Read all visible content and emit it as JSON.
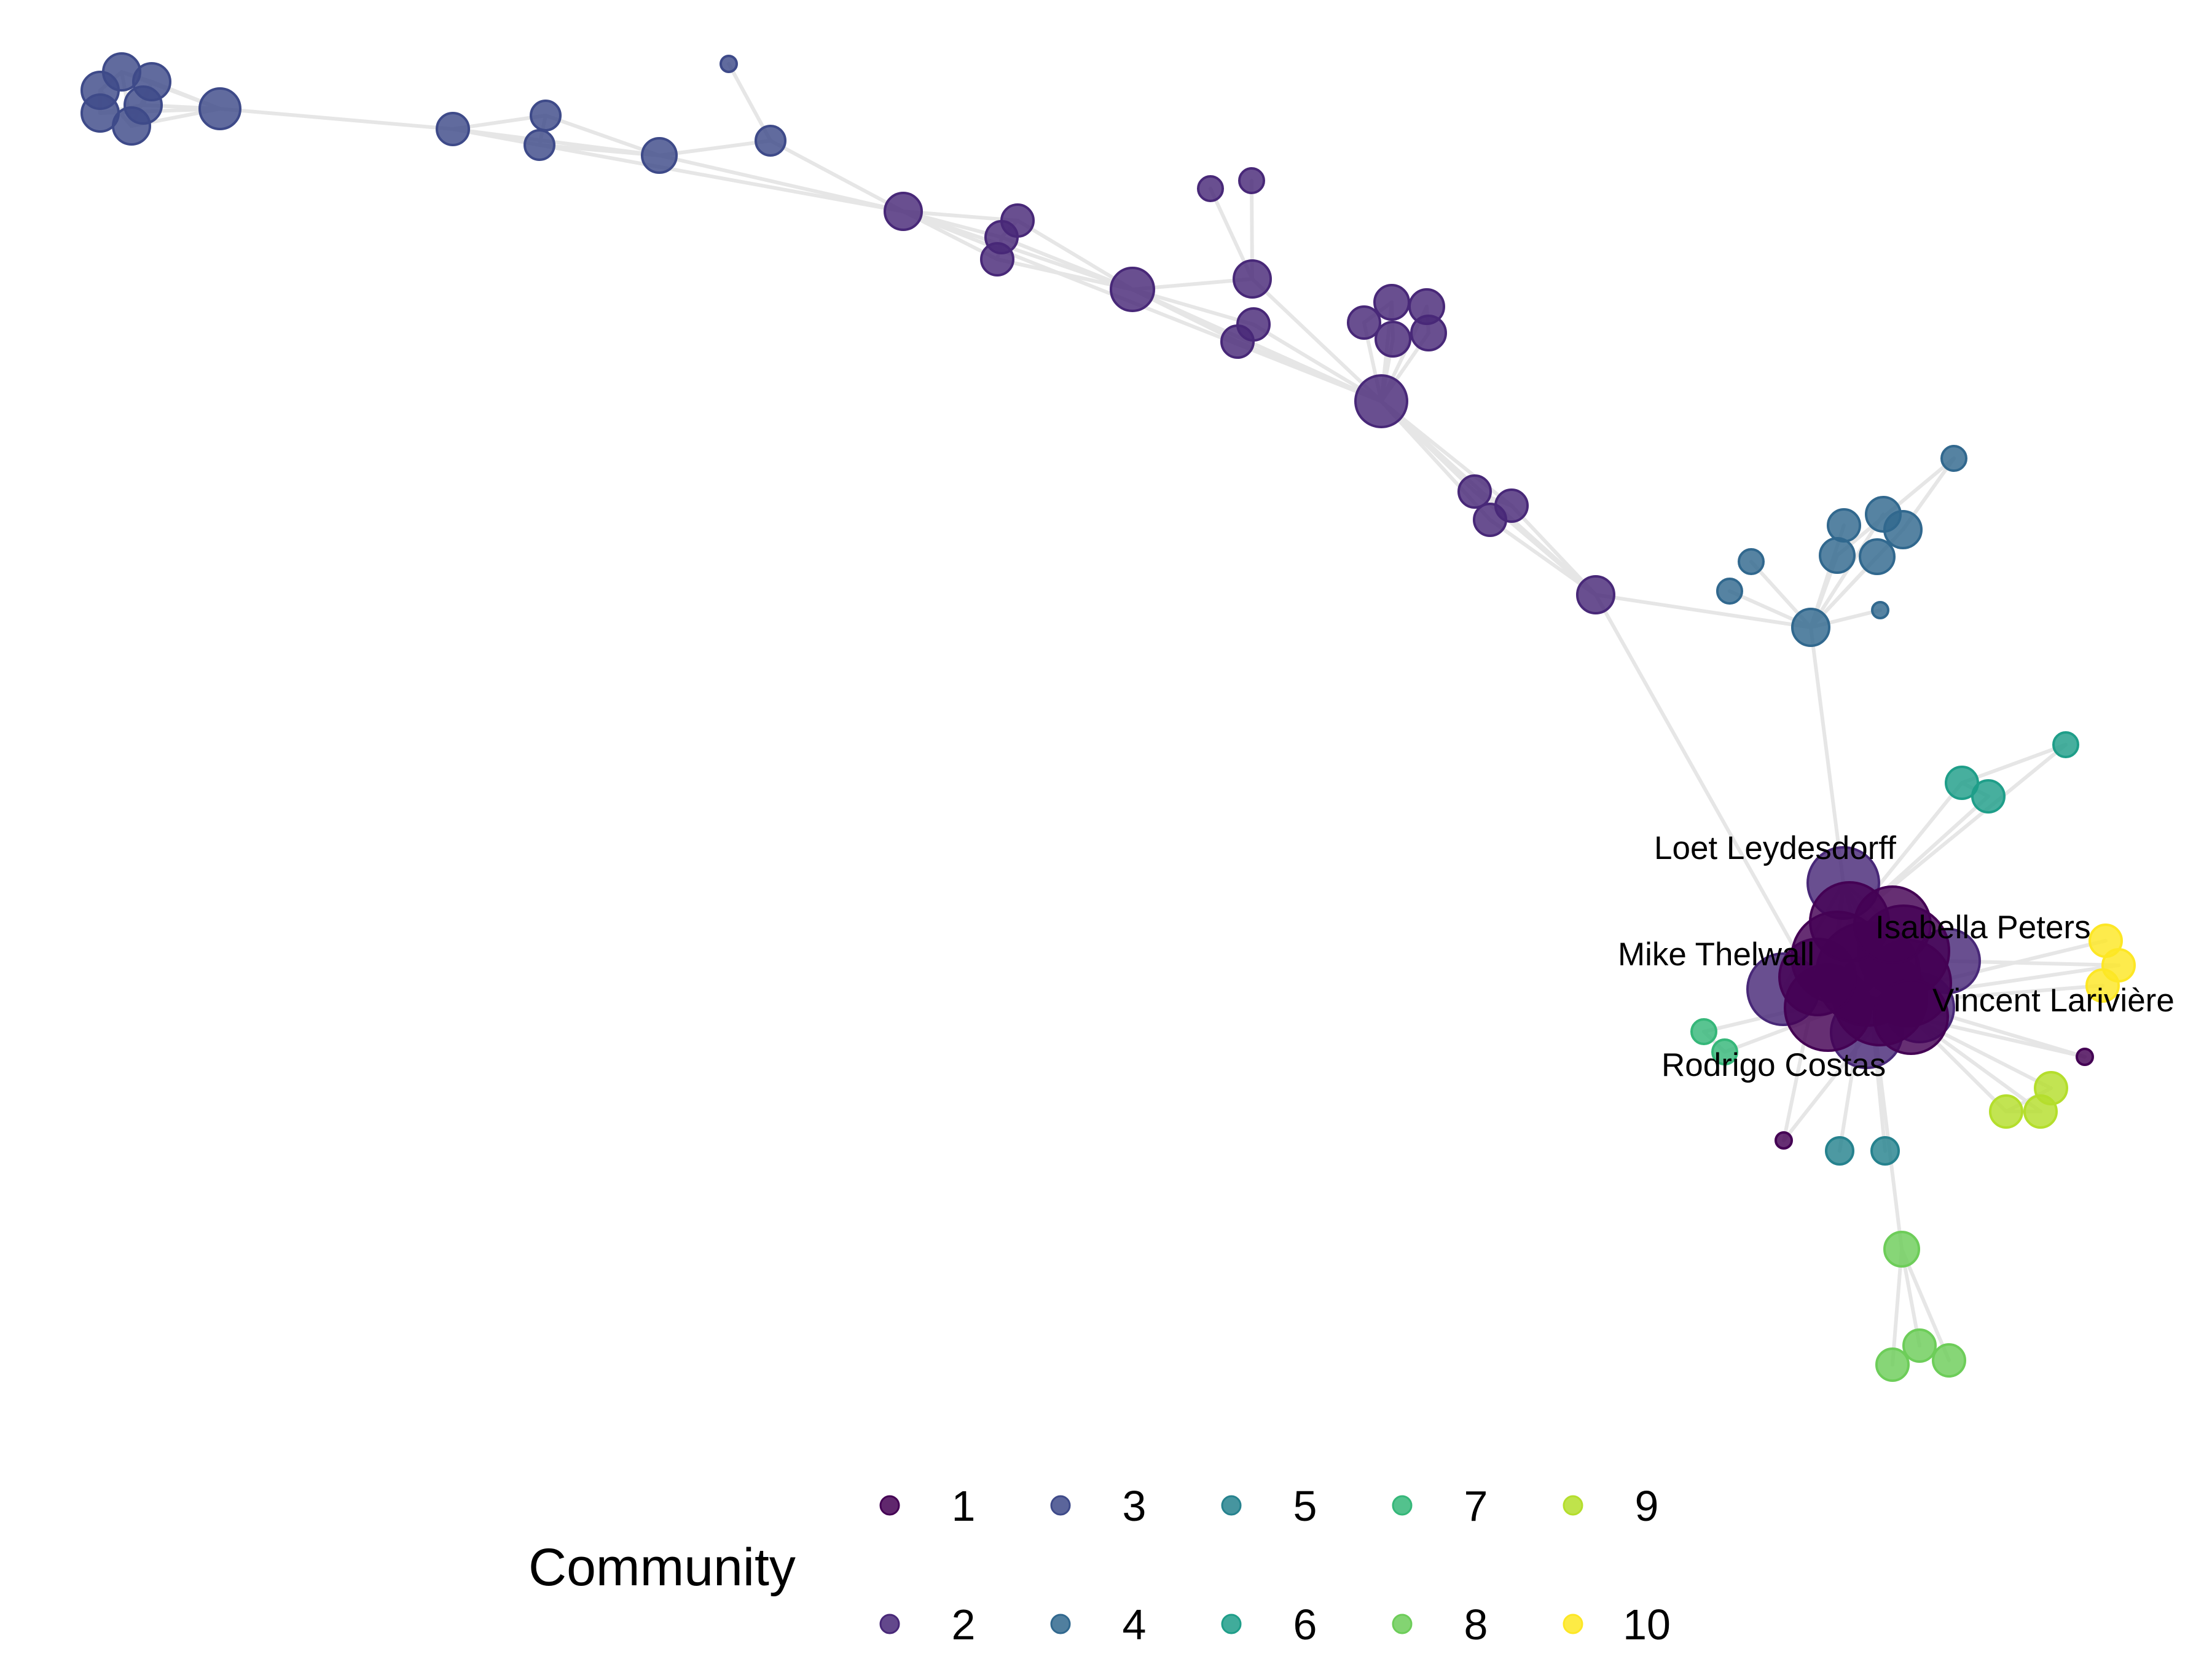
{
  "chart_data": {
    "type": "network",
    "legend": {
      "title": "Community",
      "placement": "bottom",
      "entries": [
        {
          "label": "1",
          "color": "#440154"
        },
        {
          "label": "2",
          "color": "#482878"
        },
        {
          "label": "3",
          "color": "#3E4A89"
        },
        {
          "label": "4",
          "color": "#31688E"
        },
        {
          "label": "5",
          "color": "#26828E"
        },
        {
          "label": "6",
          "color": "#1F9E89"
        },
        {
          "label": "7",
          "color": "#35B779"
        },
        {
          "label": "8",
          "color": "#6DCD59"
        },
        {
          "label": "9",
          "color": "#B4DE2C"
        },
        {
          "label": "10",
          "color": "#FDE725"
        }
      ]
    },
    "labels": [
      "Loet Leydesdorff",
      "Isabella Peters",
      "Mike Thelwall",
      "Vincent Larivière",
      "Rodrigo Costas"
    ]
  }
}
